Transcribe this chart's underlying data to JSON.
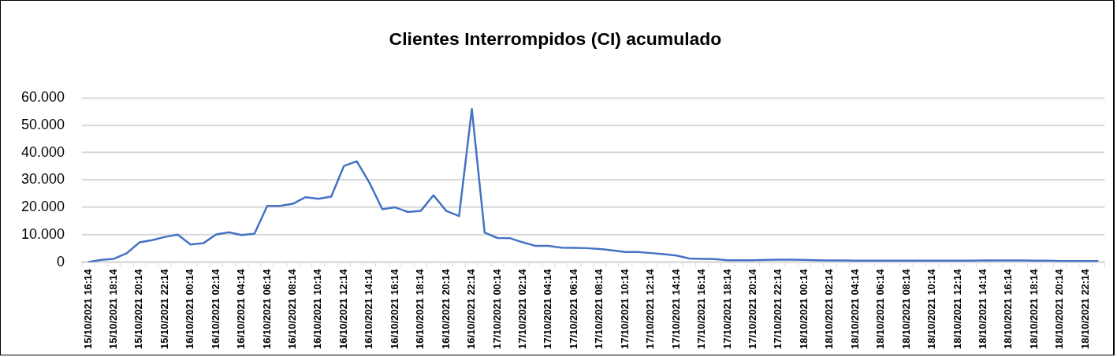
{
  "chart_data": {
    "type": "line",
    "title": "Clientes Interrompidos (CI) acumulado",
    "categories": [
      "15/10/2021 16:14",
      null,
      "15/10/2021 18:14",
      null,
      "15/10/2021 20:14",
      null,
      "15/10/2021 22:14",
      null,
      "16/10/2021 00:14",
      null,
      "16/10/2021 02:14",
      null,
      "16/10/2021 04:14",
      null,
      "16/10/2021 06:14",
      null,
      "16/10/2021 08:14",
      null,
      "16/10/2021 10:14",
      null,
      "16/10/2021 12:14",
      null,
      "16/10/2021 14:14",
      null,
      "16/10/2021 16:14",
      null,
      "16/10/2021 18:14",
      null,
      "16/10/2021 20:14",
      null,
      "16/10/2021 22:14",
      null,
      "17/10/2021 00:14",
      null,
      "17/10/2021 02:14",
      null,
      "17/10/2021 04:14",
      null,
      "17/10/2021 06:14",
      null,
      "17/10/2021 08:14",
      null,
      "17/10/2021 10:14",
      null,
      "17/10/2021 12:14",
      null,
      "17/10/2021 14:14",
      null,
      "17/10/2021 16:14",
      null,
      "17/10/2021 18:14",
      null,
      "17/10/2021 20:14",
      null,
      "17/10/2021 22:14",
      null,
      "18/10/2021 00:14",
      null,
      "18/10/2021 02:14",
      null,
      "18/10/2021 04:14",
      null,
      "18/10/2021 06:14",
      null,
      "18/10/2021 08:14",
      null,
      "18/10/2021 10:14",
      null,
      "18/10/2021 12:14",
      null,
      "18/10/2021 14:14",
      null,
      "18/10/2021 16:14",
      null,
      "18/10/2021 18:14",
      null,
      "18/10/2021 20:14",
      null,
      "18/10/2021 22:14",
      null
    ],
    "series": [
      {
        "color": "#4472c4",
        "values": [
          0,
          800,
          1200,
          3200,
          7200,
          8000,
          9200,
          10000,
          6400,
          6900,
          10100,
          10900,
          9900,
          10400,
          20500,
          20500,
          21300,
          23700,
          23100,
          23900,
          35100,
          36800,
          28900,
          19300,
          20000,
          18300,
          18700,
          24400,
          18700,
          16800,
          55900,
          10800,
          8800,
          8700,
          7200,
          5900,
          5900,
          5300,
          5200,
          5100,
          4800,
          4300,
          3700,
          3700,
          3300,
          2900,
          2400,
          1300,
          1200,
          1100,
          700,
          700,
          700,
          800,
          900,
          900,
          800,
          700,
          600,
          600,
          500,
          500,
          500,
          500,
          500,
          500,
          500,
          500,
          500,
          500,
          600,
          600,
          600,
          600,
          500,
          500,
          400,
          400,
          400,
          400
        ]
      }
    ],
    "ylim": [
      0,
      60000
    ],
    "yticks": [
      {
        "value": 0,
        "label": "0"
      },
      {
        "value": 10000,
        "label": "10.000"
      },
      {
        "value": 20000,
        "label": "20.000"
      },
      {
        "value": 30000,
        "label": "30.000"
      },
      {
        "value": 40000,
        "label": "40.000"
      },
      {
        "value": 50000,
        "label": "50.000"
      },
      {
        "value": 60000,
        "label": "60.000"
      }
    ],
    "grid": "y",
    "legend": false,
    "marker": "none",
    "line_style": "solid"
  }
}
